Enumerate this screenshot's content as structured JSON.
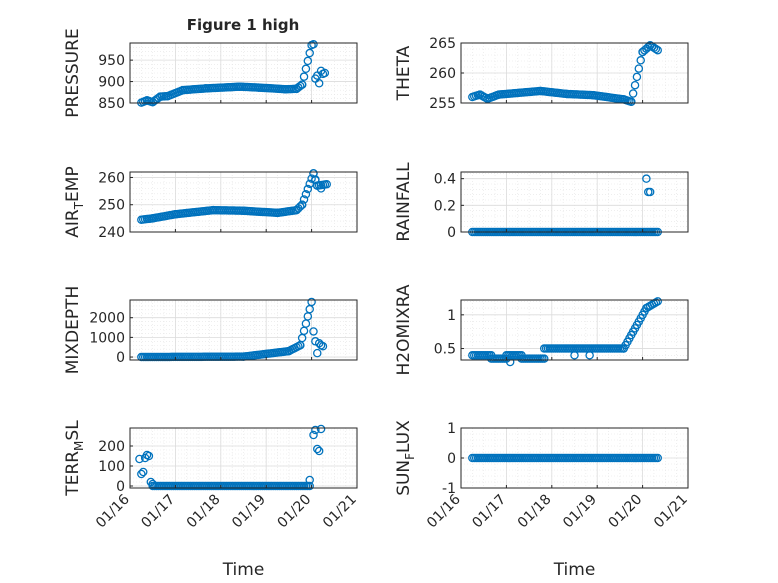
{
  "figure_title": "Figure 1 high",
  "colors": {
    "marker": "#0072BD",
    "axis": "#262626",
    "grid": "#dcdcdc",
    "background": "#ffffff"
  },
  "chart_data": [
    {
      "type": "scatter",
      "ylabel": "PRESSURE",
      "xlabel": "",
      "title": "Figure 1 high",
      "xlim": [
        "01/16",
        "01/21"
      ],
      "ylim": [
        850,
        990
      ],
      "yticks": [
        {
          "v": 850,
          "label": "850"
        },
        {
          "v": 900,
          "label": "900"
        },
        {
          "v": 950,
          "label": "950"
        }
      ],
      "show_xticklabels": false,
      "grid": true,
      "marker": "open-circle",
      "segments": [
        {
          "x0": "01/16 06:00",
          "y0": 851,
          "x1": "01/16 09:00",
          "y1": 856
        },
        {
          "x0": "01/16 09:00",
          "y0": 856,
          "x1": "01/16 12:00",
          "y1": 852
        },
        {
          "x0": "01/16 12:00",
          "y0": 852,
          "x1": "01/16 16:00",
          "y1": 865
        },
        {
          "x0": "01/16 16:00",
          "y0": 865,
          "x1": "01/16 20:00",
          "y1": 866
        },
        {
          "x0": "01/16 20:00",
          "y0": 866,
          "x1": "01/17 04:00",
          "y1": 880
        },
        {
          "x0": "01/17 04:00",
          "y0": 880,
          "x1": "01/17 16:00",
          "y1": 884
        },
        {
          "x0": "01/17 16:00",
          "y0": 884,
          "x1": "01/18 10:00",
          "y1": 888
        },
        {
          "x0": "01/18 10:00",
          "y0": 888,
          "x1": "01/18 20:00",
          "y1": 886
        },
        {
          "x0": "01/18 20:00",
          "y0": 886,
          "x1": "01/19 10:00",
          "y1": 882
        },
        {
          "x0": "01/19 10:00",
          "y0": 882,
          "x1": "01/19 16:00",
          "y1": 883
        },
        {
          "x0": "01/19 16:00",
          "y0": 883,
          "x1": "01/19 19:00",
          "y1": 893
        },
        {
          "x0": "01/19 19:00",
          "y0": 893,
          "x1": "01/20 00:00",
          "y1": 985
        }
      ],
      "points": [
        {
          "x": "01/20 01:00",
          "y": 987
        },
        {
          "x": "01/20 02:00",
          "y": 907
        },
        {
          "x": "01/20 03:00",
          "y": 914
        },
        {
          "x": "01/20 04:00",
          "y": 896
        },
        {
          "x": "01/20 05:00",
          "y": 925
        },
        {
          "x": "01/20 06:00",
          "y": 918
        },
        {
          "x": "01/20 07:00",
          "y": 920
        }
      ]
    },
    {
      "type": "scatter",
      "ylabel": "THETA",
      "xlabel": "",
      "xlim": [
        "01/16",
        "01/21"
      ],
      "ylim": [
        255,
        265
      ],
      "yticks": [
        {
          "v": 255,
          "label": "255"
        },
        {
          "v": 260,
          "label": "260"
        },
        {
          "v": 265,
          "label": "265"
        }
      ],
      "show_xticklabels": false,
      "grid": true,
      "marker": "open-circle",
      "segments": [
        {
          "x0": "01/16 06:00",
          "y0": 256.0,
          "x1": "01/16 10:00",
          "y1": 256.4
        },
        {
          "x0": "01/16 10:00",
          "y0": 256.4,
          "x1": "01/16 14:00",
          "y1": 255.7
        },
        {
          "x0": "01/16 14:00",
          "y0": 255.7,
          "x1": "01/16 20:00",
          "y1": 256.4
        },
        {
          "x0": "01/16 20:00",
          "y0": 256.4,
          "x1": "01/17 18:00",
          "y1": 257.0
        },
        {
          "x0": "01/17 18:00",
          "y0": 257.0,
          "x1": "01/18 08:00",
          "y1": 256.5
        },
        {
          "x0": "01/18 08:00",
          "y0": 256.5,
          "x1": "01/18 22:00",
          "y1": 256.3
        },
        {
          "x0": "01/18 22:00",
          "y0": 256.3,
          "x1": "01/19 14:00",
          "y1": 255.6
        },
        {
          "x0": "01/19 14:00",
          "y0": 255.6,
          "x1": "01/19 18:00",
          "y1": 255.2
        },
        {
          "x0": "01/19 18:00",
          "y0": 255.2,
          "x1": "01/20 00:00",
          "y1": 263.5
        },
        {
          "x0": "01/20 00:00",
          "y0": 263.5,
          "x1": "01/20 04:00",
          "y1": 264.6
        },
        {
          "x0": "01/20 04:00",
          "y0": 264.6,
          "x1": "01/20 08:00",
          "y1": 263.8
        }
      ],
      "points": []
    },
    {
      "type": "scatter",
      "ylabel": "AIR_TEMP",
      "ylabel_main": "AIR",
      "ylabel_sub": "T",
      "ylabel_rest": "EMP",
      "xlabel": "",
      "xlim": [
        "01/16",
        "01/21"
      ],
      "ylim": [
        240,
        262
      ],
      "yticks": [
        {
          "v": 240,
          "label": "240"
        },
        {
          "v": 250,
          "label": "250"
        },
        {
          "v": 260,
          "label": "260"
        }
      ],
      "show_xticklabels": false,
      "grid": true,
      "marker": "open-circle",
      "segments": [
        {
          "x0": "01/16 06:00",
          "y0": 244.5,
          "x1": "01/16 12:00",
          "y1": 245.0
        },
        {
          "x0": "01/16 12:00",
          "y0": 245.0,
          "x1": "01/17 00:00",
          "y1": 246.5
        },
        {
          "x0": "01/17 00:00",
          "y0": 246.5,
          "x1": "01/17 20:00",
          "y1": 248.0
        },
        {
          "x0": "01/17 20:00",
          "y0": 248.0,
          "x1": "01/18 12:00",
          "y1": 247.8
        },
        {
          "x0": "01/18 12:00",
          "y0": 247.8,
          "x1": "01/19 06:00",
          "y1": 247.0
        },
        {
          "x0": "01/19 06:00",
          "y0": 247.0,
          "x1": "01/19 16:00",
          "y1": 248.0
        },
        {
          "x0": "01/19 16:00",
          "y0": 248.0,
          "x1": "01/19 19:00",
          "y1": 250.0
        },
        {
          "x0": "01/19 19:00",
          "y0": 250.0,
          "x1": "01/20 01:00",
          "y1": 261.5
        },
        {
          "x0": "01/20 01:00",
          "y0": 261.5,
          "x1": "01/20 03:00",
          "y1": 257.0
        },
        {
          "x0": "01/20 03:00",
          "y0": 257.0,
          "x1": "01/20 08:00",
          "y1": 257.5
        }
      ],
      "points": [
        {
          "x": "01/20 02:00",
          "y": 259.0
        },
        {
          "x": "01/20 05:00",
          "y": 256.0
        }
      ]
    },
    {
      "type": "scatter",
      "ylabel": "RAINFALL",
      "xlabel": "",
      "xlim": [
        "01/16",
        "01/21"
      ],
      "ylim": [
        0,
        0.45
      ],
      "yticks": [
        {
          "v": 0,
          "label": "0"
        },
        {
          "v": 0.2,
          "label": "0.2"
        },
        {
          "v": 0.4,
          "label": "0.4"
        }
      ],
      "show_xticklabels": false,
      "grid": true,
      "marker": "open-circle",
      "segments": [
        {
          "x0": "01/16 06:00",
          "y0": 0,
          "x1": "01/20 08:00",
          "y1": 0
        }
      ],
      "points": [
        {
          "x": "01/20 02:00",
          "y": 0.4
        },
        {
          "x": "01/20 03:00",
          "y": 0.3
        },
        {
          "x": "01/20 04:00",
          "y": 0.3
        }
      ]
    },
    {
      "type": "scatter",
      "ylabel": "MIXDEPTH",
      "xlabel": "",
      "xlim": [
        "01/16",
        "01/21"
      ],
      "ylim": [
        -150,
        2900
      ],
      "yticks": [
        {
          "v": 0,
          "label": "0"
        },
        {
          "v": 1000,
          "label": "1000"
        },
        {
          "v": 2000,
          "label": "2000"
        }
      ],
      "show_xticklabels": false,
      "grid": true,
      "marker": "open-circle",
      "segments": [
        {
          "x0": "01/16 06:00",
          "y0": 0,
          "x1": "01/18 12:00",
          "y1": 20
        },
        {
          "x0": "01/18 12:00",
          "y0": 20,
          "x1": "01/19 12:00",
          "y1": 300
        },
        {
          "x0": "01/19 12:00",
          "y0": 300,
          "x1": "01/19 18:00",
          "y1": 600
        },
        {
          "x0": "01/19 18:00",
          "y0": 600,
          "x1": "01/20 00:00",
          "y1": 2800
        }
      ],
      "points": [
        {
          "x": "01/20 01:00",
          "y": 1300
        },
        {
          "x": "01/20 02:00",
          "y": 800
        },
        {
          "x": "01/20 03:00",
          "y": 200
        },
        {
          "x": "01/20 04:00",
          "y": 700
        },
        {
          "x": "01/20 05:00",
          "y": 600
        },
        {
          "x": "01/20 06:00",
          "y": 550
        }
      ]
    },
    {
      "type": "scatter",
      "ylabel": "H2OMIXRA",
      "xlabel": "",
      "xlim": [
        "01/16",
        "01/21"
      ],
      "ylim": [
        0.33,
        1.22
      ],
      "yticks": [
        {
          "v": 0.5,
          "label": "0.5"
        },
        {
          "v": 1,
          "label": "1"
        }
      ],
      "show_xticklabels": false,
      "grid": true,
      "marker": "open-circle",
      "segments": [
        {
          "x0": "01/16 06:00",
          "y0": 0.4,
          "x1": "01/16 16:00",
          "y1": 0.4
        },
        {
          "x0": "01/16 16:00",
          "y0": 0.35,
          "x1": "01/17 00:00",
          "y1": 0.35
        },
        {
          "x0": "01/17 00:00",
          "y0": 0.4,
          "x1": "01/17 08:00",
          "y1": 0.4
        },
        {
          "x0": "01/17 08:00",
          "y0": 0.35,
          "x1": "01/17 20:00",
          "y1": 0.35
        },
        {
          "x0": "01/17 20:00",
          "y0": 0.5,
          "x1": "01/19 14:00",
          "y1": 0.5
        },
        {
          "x0": "01/19 14:00",
          "y0": 0.5,
          "x1": "01/20 02:00",
          "y1": 1.1
        },
        {
          "x0": "01/20 02:00",
          "y0": 1.1,
          "x1": "01/20 08:00",
          "y1": 1.2
        }
      ],
      "points": [
        {
          "x": "01/18 12:00",
          "y": 0.4
        },
        {
          "x": "01/18 20:00",
          "y": 0.4
        },
        {
          "x": "01/17 02:00",
          "y": 0.3
        }
      ]
    },
    {
      "type": "scatter",
      "ylabel": "TERR_MSL",
      "ylabel_main": "TERR",
      "ylabel_sub": "M",
      "ylabel_rest": "SL",
      "xlabel": "Time",
      "xlim": [
        "01/16",
        "01/21"
      ],
      "ylim": [
        -10,
        290
      ],
      "yticks": [
        {
          "v": 0,
          "label": "0"
        },
        {
          "v": 100,
          "label": "100"
        },
        {
          "v": 200,
          "label": "200"
        }
      ],
      "xticks": [
        "01/16",
        "01/17",
        "01/18",
        "01/19",
        "01/20",
        "01/21"
      ],
      "show_xticklabels": true,
      "grid": true,
      "marker": "open-circle",
      "segments": [
        {
          "x0": "01/16 12:00",
          "y0": 0,
          "x1": "01/19 23:00",
          "y1": 0
        }
      ],
      "points": [
        {
          "x": "01/16 05:00",
          "y": 135
        },
        {
          "x": "01/16 06:00",
          "y": 60
        },
        {
          "x": "01/16 07:00",
          "y": 70
        },
        {
          "x": "01/16 08:00",
          "y": 140
        },
        {
          "x": "01/16 09:00",
          "y": 155
        },
        {
          "x": "01/16 10:00",
          "y": 150
        },
        {
          "x": "01/16 11:00",
          "y": 20
        },
        {
          "x": "01/16 12:00",
          "y": 10
        },
        {
          "x": "01/19 23:00",
          "y": 30
        },
        {
          "x": "01/20 01:00",
          "y": 255
        },
        {
          "x": "01/20 02:00",
          "y": 280
        },
        {
          "x": "01/20 03:00",
          "y": 185
        },
        {
          "x": "01/20 04:00",
          "y": 175
        },
        {
          "x": "01/20 05:00",
          "y": 285
        }
      ]
    },
    {
      "type": "scatter",
      "ylabel": "SUN_FLUX",
      "ylabel_main": "SUN",
      "ylabel_sub": "F",
      "ylabel_rest": "LUX",
      "xlabel": "Time",
      "xlim": [
        "01/16",
        "01/21"
      ],
      "ylim": [
        -1,
        1
      ],
      "yticks": [
        {
          "v": -1,
          "label": "-1"
        },
        {
          "v": 0,
          "label": "0"
        },
        {
          "v": 1,
          "label": "1"
        }
      ],
      "xticks": [
        "01/16",
        "01/17",
        "01/18",
        "01/19",
        "01/20",
        "01/21"
      ],
      "show_xticklabels": true,
      "grid": true,
      "marker": "open-circle",
      "segments": [
        {
          "x0": "01/16 06:00",
          "y0": 0,
          "x1": "01/20 08:00",
          "y1": 0
        }
      ],
      "points": []
    }
  ]
}
